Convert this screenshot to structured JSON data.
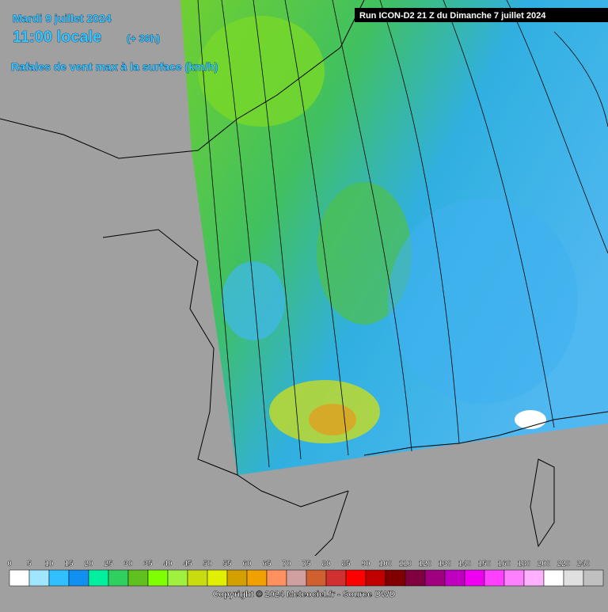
{
  "header": {
    "date": "Mardi 9 juillet 2024",
    "time": "11:00 locale",
    "lead": "(+ 36h)",
    "subtitle": "Rafales de vent max à la surface (km/h)",
    "run": "Run ICON-D2 21 Z du Dimanche 7 juillet 2024"
  },
  "legend": {
    "ticks": [
      0,
      5,
      10,
      15,
      20,
      25,
      30,
      35,
      40,
      45,
      50,
      55,
      60,
      65,
      70,
      75,
      80,
      85,
      90,
      100,
      110,
      120,
      130,
      140,
      150,
      160,
      180,
      200,
      220,
      240
    ],
    "colors": [
      "#ffffff",
      "#a0e6ff",
      "#30c0ff",
      "#1090f0",
      "#00f0a0",
      "#30d060",
      "#60c020",
      "#80ff00",
      "#a0f040",
      "#c8dc10",
      "#e0f000",
      "#d4a000",
      "#f0a000",
      "#ff9060",
      "#d0a0a0",
      "#d06030",
      "#d03030",
      "#ff0000",
      "#c00000",
      "#800000",
      "#800040",
      "#a00080",
      "#c000c0",
      "#f000f0",
      "#ff40ff",
      "#ff80ff",
      "#ffb0ff",
      "#ffffff",
      "#e0e0e0",
      "#c0c0c0"
    ]
  },
  "footer": {
    "copyright": "Copyright © 2024 Meteociel.fr - Source DWD"
  }
}
